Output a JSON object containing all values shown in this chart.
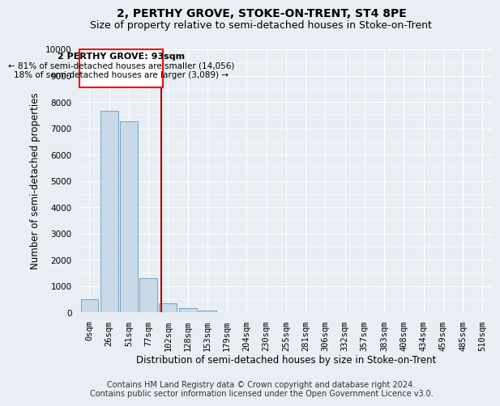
{
  "title": "2, PERTHY GROVE, STOKE-ON-TRENT, ST4 8PE",
  "subtitle": "Size of property relative to semi-detached houses in Stoke-on-Trent",
  "xlabel": "Distribution of semi-detached houses by size in Stoke-on-Trent",
  "ylabel": "Number of semi-detached properties",
  "footer_line1": "Contains HM Land Registry data © Crown copyright and database right 2024.",
  "footer_line2": "Contains public sector information licensed under the Open Government Licence v3.0.",
  "annotation_title": "2 PERTHY GROVE: 93sqm",
  "annotation_line1": "← 81% of semi-detached houses are smaller (14,056)",
  "annotation_line2": "18% of semi-detached houses are larger (3,089) →",
  "property_size_sqm": 93,
  "bar_categories": [
    "0sqm",
    "26sqm",
    "51sqm",
    "77sqm",
    "102sqm",
    "128sqm",
    "153sqm",
    "179sqm",
    "204sqm",
    "230sqm",
    "255sqm",
    "281sqm",
    "306sqm",
    "332sqm",
    "357sqm",
    "383sqm",
    "408sqm",
    "434sqm",
    "459sqm",
    "485sqm",
    "510sqm"
  ],
  "bar_values": [
    500,
    7650,
    7250,
    1300,
    350,
    150,
    70,
    0,
    0,
    0,
    0,
    0,
    0,
    0,
    0,
    0,
    0,
    0,
    0,
    0,
    0
  ],
  "bar_color": "#c9d9e8",
  "bar_edge_color": "#6699bb",
  "property_line_color": "#aa0000",
  "ylim": [
    0,
    10000
  ],
  "yticks": [
    0,
    1000,
    2000,
    3000,
    4000,
    5000,
    6000,
    7000,
    8000,
    9000,
    10000
  ],
  "background_color": "#e8eef4",
  "plot_bg_color": "#e8eef4",
  "grid_color": "#ffffff",
  "title_fontsize": 10,
  "subtitle_fontsize": 9,
  "axis_label_fontsize": 8.5,
  "tick_fontsize": 7.5,
  "annotation_fontsize": 8,
  "footer_fontsize": 7
}
